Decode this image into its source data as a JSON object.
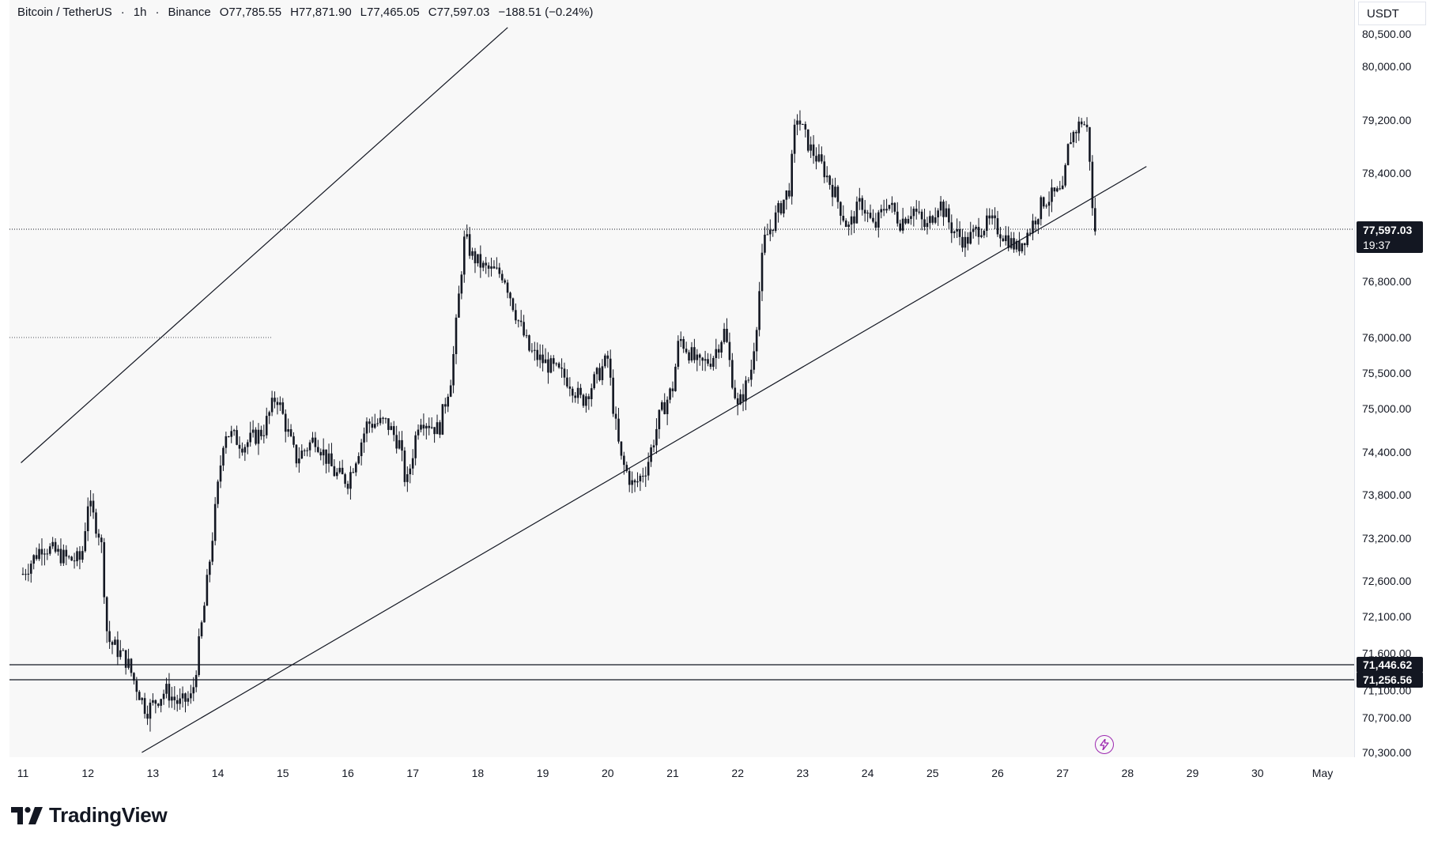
{
  "header": {
    "symbol": "Bitcoin / TetherUS",
    "interval": "1h",
    "exchange": "Binance",
    "open": "O77,785.55",
    "high": "H77,871.90",
    "low": "L77,465.05",
    "close": "C77,597.03",
    "change": "−188.51 (−0.24%)"
  },
  "price_axis": {
    "currency": "USDT",
    "ticks": [
      "80,500.00",
      "80,000.00",
      "79,200.00",
      "78,400.00",
      "76,800.00",
      "76,000.00",
      "75,500.00",
      "75,000.00",
      "74,400.00",
      "73,800.00",
      "73,200.00",
      "72,600.00",
      "72,100.00",
      "71,600.00",
      "71,100.00",
      "70,700.00",
      "70,300.00"
    ]
  },
  "time_axis": {
    "ticks": [
      "11",
      "12",
      "13",
      "14",
      "15",
      "16",
      "17",
      "18",
      "19",
      "20",
      "21",
      "22",
      "23",
      "24",
      "25",
      "26",
      "27",
      "28",
      "29",
      "30",
      "May"
    ]
  },
  "last_price": {
    "value": "77,597.03",
    "countdown": "19:37"
  },
  "levels": [
    {
      "label": "71,446.62"
    },
    {
      "label": "71,256.56"
    }
  ],
  "branding": {
    "name": "TradingView"
  },
  "colors": {
    "bg": "#f8f8f8",
    "candle": "#131722",
    "label_bg": "#131722",
    "label_text": "#ffffff",
    "flash": "#9c27b0"
  },
  "icons": {
    "flash": "flash-icon",
    "logo": "tradingview-logo"
  },
  "chart_data": {
    "type": "candlestick",
    "title": "Bitcoin / TetherUS · 1h · Binance",
    "xlabel": "",
    "ylabel": "",
    "x_range": [
      "11",
      "May"
    ],
    "ylim": [
      70300,
      80600
    ],
    "last_price": 77597.03,
    "horizontal_levels": [
      71446.62,
      71256.56
    ],
    "channel_lines": [
      {
        "name": "upper",
        "points": [
          [
            10.97,
            74250
          ],
          [
            18.46,
            80600
          ]
        ]
      },
      {
        "name": "lower",
        "points": [
          [
            12.83,
            70300
          ],
          [
            28.29,
            78500
          ]
        ]
      }
    ],
    "price_path": [
      {
        "x": 11.0,
        "y": 72700
      },
      {
        "x": 11.3,
        "y": 73100
      },
      {
        "x": 11.7,
        "y": 72900
      },
      {
        "x": 11.9,
        "y": 72900
      },
      {
        "x": 12.0,
        "y": 73700
      },
      {
        "x": 12.2,
        "y": 73200
      },
      {
        "x": 12.3,
        "y": 71800
      },
      {
        "x": 12.6,
        "y": 71500
      },
      {
        "x": 12.9,
        "y": 70800
      },
      {
        "x": 13.2,
        "y": 71100
      },
      {
        "x": 13.4,
        "y": 70900
      },
      {
        "x": 13.6,
        "y": 71000
      },
      {
        "x": 13.8,
        "y": 72300
      },
      {
        "x": 14.1,
        "y": 74700
      },
      {
        "x": 14.4,
        "y": 74500
      },
      {
        "x": 14.7,
        "y": 74700
      },
      {
        "x": 14.9,
        "y": 75200
      },
      {
        "x": 15.2,
        "y": 74300
      },
      {
        "x": 15.5,
        "y": 74600
      },
      {
        "x": 15.8,
        "y": 74100
      },
      {
        "x": 16.0,
        "y": 74000
      },
      {
        "x": 16.3,
        "y": 74800
      },
      {
        "x": 16.6,
        "y": 74800
      },
      {
        "x": 16.8,
        "y": 74500
      },
      {
        "x": 16.9,
        "y": 73900
      },
      {
        "x": 17.1,
        "y": 74900
      },
      {
        "x": 17.4,
        "y": 74700
      },
      {
        "x": 17.6,
        "y": 75500
      },
      {
        "x": 17.8,
        "y": 77500
      },
      {
        "x": 17.9,
        "y": 77200
      },
      {
        "x": 18.1,
        "y": 77000
      },
      {
        "x": 18.4,
        "y": 76900
      },
      {
        "x": 18.6,
        "y": 76300
      },
      {
        "x": 18.8,
        "y": 75800
      },
      {
        "x": 19.1,
        "y": 75600
      },
      {
        "x": 19.4,
        "y": 75400
      },
      {
        "x": 19.6,
        "y": 75100
      },
      {
        "x": 19.8,
        "y": 75400
      },
      {
        "x": 20.0,
        "y": 75700
      },
      {
        "x": 20.1,
        "y": 74900
      },
      {
        "x": 20.2,
        "y": 74300
      },
      {
        "x": 20.4,
        "y": 73900
      },
      {
        "x": 20.6,
        "y": 74200
      },
      {
        "x": 20.8,
        "y": 74900
      },
      {
        "x": 21.0,
        "y": 75300
      },
      {
        "x": 21.1,
        "y": 76000
      },
      {
        "x": 21.4,
        "y": 75600
      },
      {
        "x": 21.6,
        "y": 75700
      },
      {
        "x": 21.8,
        "y": 76100
      },
      {
        "x": 21.9,
        "y": 75500
      },
      {
        "x": 22.0,
        "y": 75000
      },
      {
        "x": 22.2,
        "y": 75500
      },
      {
        "x": 22.3,
        "y": 76300
      },
      {
        "x": 22.4,
        "y": 77400
      },
      {
        "x": 22.6,
        "y": 77800
      },
      {
        "x": 22.8,
        "y": 78200
      },
      {
        "x": 22.9,
        "y": 79300
      },
      {
        "x": 23.1,
        "y": 78800
      },
      {
        "x": 23.3,
        "y": 78500
      },
      {
        "x": 23.5,
        "y": 78100
      },
      {
        "x": 23.7,
        "y": 77600
      },
      {
        "x": 23.9,
        "y": 78000
      },
      {
        "x": 24.1,
        "y": 77600
      },
      {
        "x": 24.3,
        "y": 78000
      },
      {
        "x": 24.5,
        "y": 77700
      },
      {
        "x": 24.7,
        "y": 77900
      },
      {
        "x": 24.9,
        "y": 77600
      },
      {
        "x": 25.1,
        "y": 78000
      },
      {
        "x": 25.3,
        "y": 77600
      },
      {
        "x": 25.5,
        "y": 77400
      },
      {
        "x": 25.7,
        "y": 77600
      },
      {
        "x": 25.9,
        "y": 77700
      },
      {
        "x": 26.1,
        "y": 77500
      },
      {
        "x": 26.3,
        "y": 77300
      },
      {
        "x": 26.5,
        "y": 77600
      },
      {
        "x": 26.7,
        "y": 78000
      },
      {
        "x": 26.9,
        "y": 78100
      },
      {
        "x": 27.0,
        "y": 78100
      },
      {
        "x": 27.1,
        "y": 78900
      },
      {
        "x": 27.3,
        "y": 79200
      },
      {
        "x": 27.4,
        "y": 79000
      },
      {
        "x": 27.45,
        "y": 77900
      },
      {
        "x": 27.5,
        "y": 77600
      }
    ]
  }
}
